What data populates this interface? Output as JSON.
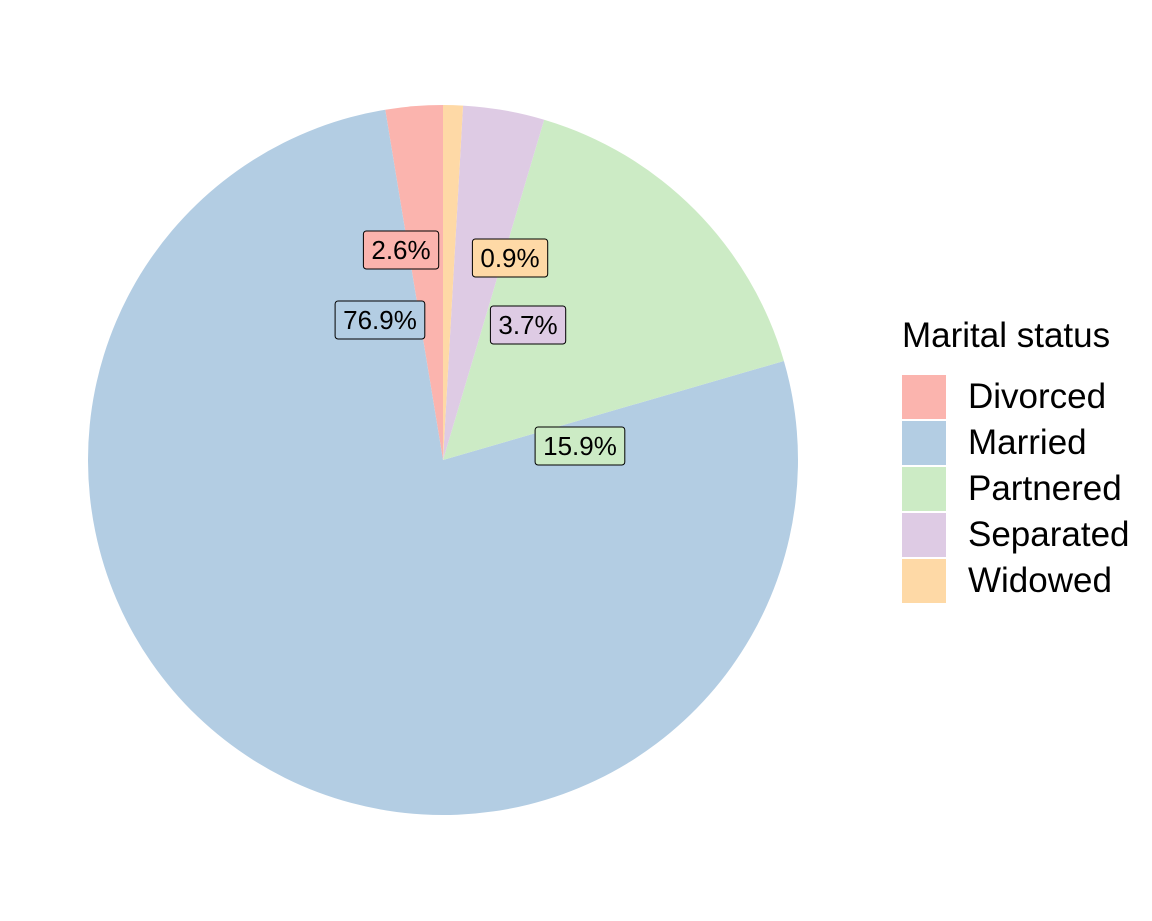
{
  "chart_data": {
    "type": "pie",
    "categories": [
      "Divorced",
      "Married",
      "Partnered",
      "Separated",
      "Widowed"
    ],
    "values": [
      2.6,
      76.9,
      15.9,
      3.7,
      0.9
    ],
    "labels": [
      "2.6%",
      "76.9%",
      "15.9%",
      "3.7%",
      "0.9%"
    ],
    "colors": [
      "#FBB4AE",
      "#B3CDE3",
      "#CCEBC5",
      "#DECBE4",
      "#FED9A6"
    ],
    "legend": {
      "title": "Marital status",
      "position": "right"
    },
    "direction": "counterclockwise"
  }
}
